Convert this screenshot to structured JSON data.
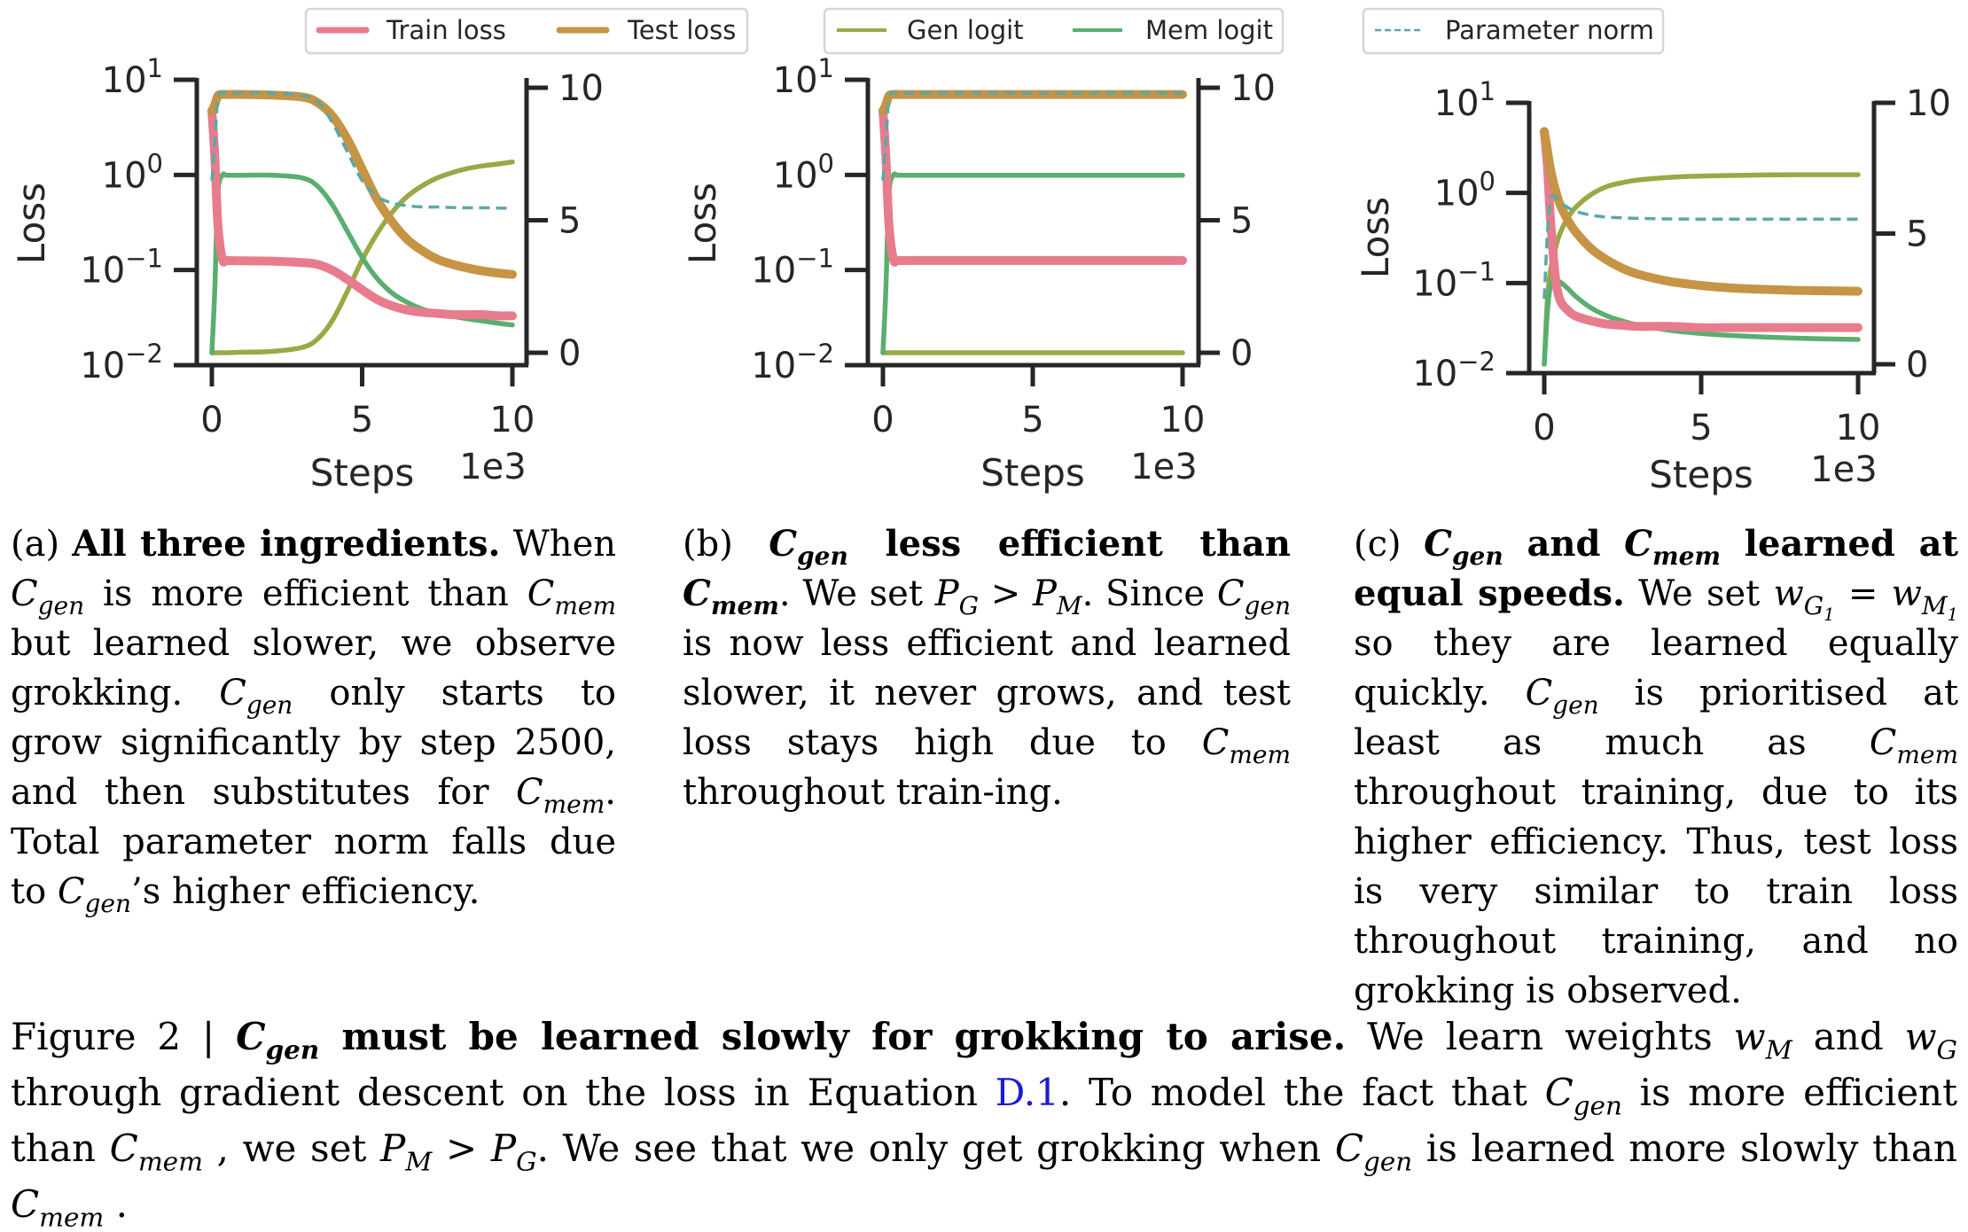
{
  "legend": {
    "train_loss": "Train loss",
    "test_loss": "Test loss",
    "gen_logit": "Gen logit",
    "mem_logit": "Mem logit",
    "param_norm": "Parameter norm"
  },
  "colors": {
    "train_loss": "#e77c8d",
    "test_loss": "#c69445",
    "gen_logit": "#9aa945",
    "mem_logit": "#5aae6f",
    "param_norm": "#5ba8a5",
    "axis": "#262626",
    "link": "#1a1ad6"
  },
  "chart_data": [
    {
      "id": "a",
      "type": "line",
      "title": "",
      "xlabel": "Steps",
      "x_offset_label": "1e3",
      "ylabel": "Loss",
      "yscale": "log",
      "ylim": [
        0.01,
        10
      ],
      "y_ticks": [
        "10^1",
        "10^0",
        "10^-1",
        "10^-2"
      ],
      "y2lim": [
        0,
        10
      ],
      "y2_ticks": [
        "10",
        "5",
        "0"
      ],
      "xlim": [
        0,
        10
      ],
      "x_ticks": [
        "0",
        "5",
        "10"
      ],
      "x": [
        0,
        0.1,
        0.2,
        0.35,
        0.5,
        1,
        2,
        3,
        3.5,
        4,
        4.5,
        5,
        5.5,
        6,
        6.5,
        7,
        7.5,
        8,
        8.5,
        9,
        9.5,
        10
      ],
      "series": [
        {
          "name": "Train loss",
          "axis": "left",
          "values": [
            4.7,
            1.5,
            0.3,
            0.13,
            0.126,
            0.125,
            0.124,
            0.12,
            0.115,
            0.1,
            0.08,
            0.062,
            0.049,
            0.042,
            0.038,
            0.036,
            0.035,
            0.034,
            0.034,
            0.034,
            0.033,
            0.033
          ]
        },
        {
          "name": "Test loss",
          "axis": "left",
          "values": [
            4.7,
            5.5,
            6.8,
            7.0,
            7.0,
            7.0,
            6.9,
            6.6,
            5.8,
            4.2,
            2.4,
            1.15,
            0.55,
            0.32,
            0.21,
            0.16,
            0.13,
            0.115,
            0.105,
            0.098,
            0.093,
            0.09
          ]
        },
        {
          "name": "Gen logit",
          "axis": "right",
          "values": [
            0,
            0,
            0,
            0,
            0,
            0.02,
            0.05,
            0.2,
            0.5,
            1.2,
            2.3,
            3.5,
            4.5,
            5.3,
            5.9,
            6.3,
            6.6,
            6.8,
            6.95,
            7.05,
            7.12,
            7.2
          ]
        },
        {
          "name": "Mem logit",
          "axis": "right",
          "values": [
            0,
            2.5,
            6.0,
            6.7,
            6.7,
            6.7,
            6.7,
            6.6,
            6.3,
            5.6,
            4.6,
            3.6,
            2.8,
            2.25,
            1.9,
            1.65,
            1.5,
            1.38,
            1.28,
            1.2,
            1.12,
            1.05
          ]
        },
        {
          "name": "Parameter norm",
          "axis": "right",
          "values": [
            6.5,
            8.0,
            9.6,
            9.8,
            9.8,
            9.8,
            9.8,
            9.7,
            9.5,
            8.7,
            7.6,
            6.5,
            5.9,
            5.65,
            5.55,
            5.5,
            5.5,
            5.48,
            5.47,
            5.47,
            5.46,
            5.45
          ]
        }
      ]
    },
    {
      "id": "b",
      "type": "line",
      "title": "",
      "xlabel": "Steps",
      "x_offset_label": "1e3",
      "ylabel": "Loss",
      "yscale": "log",
      "ylim": [
        0.01,
        10
      ],
      "y_ticks": [
        "10^1",
        "10^0",
        "10^-1",
        "10^-2"
      ],
      "y2lim": [
        0,
        10
      ],
      "y2_ticks": [
        "10",
        "5",
        "0"
      ],
      "xlim": [
        0,
        10
      ],
      "x_ticks": [
        "0",
        "5",
        "10"
      ],
      "x": [
        0,
        0.1,
        0.2,
        0.35,
        0.5,
        1,
        2,
        4,
        6,
        8,
        10
      ],
      "series": [
        {
          "name": "Train loss",
          "axis": "left",
          "values": [
            4.7,
            1.5,
            0.3,
            0.13,
            0.126,
            0.126,
            0.126,
            0.126,
            0.126,
            0.126,
            0.126
          ]
        },
        {
          "name": "Test loss",
          "axis": "left",
          "values": [
            4.7,
            5.5,
            6.8,
            7.0,
            7.0,
            7.0,
            7.0,
            7.0,
            7.0,
            7.0,
            7.0
          ]
        },
        {
          "name": "Gen logit",
          "axis": "right",
          "values": [
            0,
            0,
            0,
            0,
            0,
            0,
            0,
            0,
            0,
            0,
            0
          ]
        },
        {
          "name": "Mem logit",
          "axis": "right",
          "values": [
            0,
            2.5,
            6.0,
            6.7,
            6.7,
            6.7,
            6.7,
            6.7,
            6.7,
            6.7,
            6.7
          ]
        },
        {
          "name": "Parameter norm",
          "axis": "right",
          "values": [
            6.5,
            8.0,
            9.6,
            9.8,
            9.8,
            9.8,
            9.8,
            9.8,
            9.8,
            9.8,
            9.8
          ]
        }
      ]
    },
    {
      "id": "c",
      "type": "line",
      "title": "",
      "xlabel": "Steps",
      "x_offset_label": "1e3",
      "ylabel": "Loss",
      "yscale": "log",
      "ylim": [
        0.01,
        10
      ],
      "y_ticks": [
        "10^1",
        "10^0",
        "10^-1",
        "10^-2"
      ],
      "y2lim": [
        0,
        10
      ],
      "y2_ticks": [
        "10",
        "5",
        "0"
      ],
      "xlim": [
        0,
        10
      ],
      "x_ticks": [
        "0",
        "5",
        "10"
      ],
      "x": [
        0,
        0.1,
        0.2,
        0.35,
        0.5,
        0.75,
        1,
        1.5,
        2,
        2.5,
        3,
        4,
        5,
        6,
        7,
        8,
        9,
        10
      ],
      "series": [
        {
          "name": "Train loss",
          "axis": "left",
          "values": [
            4.8,
            2.0,
            0.5,
            0.12,
            0.065,
            0.05,
            0.043,
            0.038,
            0.035,
            0.034,
            0.033,
            0.033,
            0.032,
            0.032,
            0.032,
            0.032,
            0.032,
            0.032
          ]
        },
        {
          "name": "Test loss",
          "axis": "left",
          "values": [
            4.8,
            3.0,
            1.8,
            1.1,
            0.75,
            0.5,
            0.37,
            0.24,
            0.18,
            0.145,
            0.125,
            0.104,
            0.094,
            0.088,
            0.085,
            0.083,
            0.082,
            0.081
          ]
        },
        {
          "name": "Gen logit",
          "axis": "right",
          "values": [
            0,
            2.5,
            3.6,
            4.4,
            5.0,
            5.6,
            6.0,
            6.5,
            6.8,
            6.95,
            7.05,
            7.15,
            7.2,
            7.22,
            7.24,
            7.25,
            7.25,
            7.25
          ]
        },
        {
          "name": "Mem logit",
          "axis": "right",
          "values": [
            0,
            2.0,
            3.0,
            3.2,
            3.15,
            2.9,
            2.6,
            2.15,
            1.85,
            1.65,
            1.5,
            1.3,
            1.18,
            1.1,
            1.04,
            1.0,
            0.97,
            0.95
          ]
        },
        {
          "name": "Parameter norm",
          "axis": "right",
          "values": [
            2.5,
            5.0,
            6.3,
            6.4,
            6.2,
            6.0,
            5.85,
            5.7,
            5.63,
            5.6,
            5.58,
            5.56,
            5.55,
            5.55,
            5.55,
            5.55,
            5.55,
            5.55
          ]
        }
      ]
    }
  ],
  "captions": {
    "a": {
      "label": "(a)",
      "title": "All three ingredients.",
      "t1": "When",
      "t2": "is more efficient than",
      "t3": "but learned slower, we observe grokking.",
      "t4": "only starts to grow significantly by step 2500, and then substitutes for",
      "t5": ". Total parameter norm falls due to",
      "t6": "’s higher efficiency."
    },
    "b": {
      "label": "(b)",
      "title_mid": "less efficient than",
      "t1": ". We set",
      "t2": ". Since",
      "t3": "is now less efficient and learned slower, it never grows, and test loss stays high due to",
      "t4": "throughout train-ing."
    },
    "c": {
      "label": "(c)",
      "title_mid1": "and",
      "title_mid2": "learned at equal speeds.",
      "t1": "We set",
      "t2": "so they are learned equally quickly.",
      "t3": "is prioritised at least as much as",
      "t4": "throughout training, due to its higher efficiency.  Thus, test loss is very similar to train loss throughout training, and no grokking is observed."
    },
    "math": {
      "C": "C",
      "gen": "gen",
      "mem": "mem",
      "P": "P",
      "G": "G",
      "M": "M",
      "w": "w",
      "G1": "G",
      "M1": "M",
      "one": "1",
      "gt": " > ",
      "eq": " = "
    }
  },
  "figure_caption": {
    "prefix": "Figure 2 | ",
    "bold": "must be learned slowly for grokking to arise.",
    "t1": " We learn weights ",
    "t2": " and ",
    "t3": " through gradient descent on the loss in Equation ",
    "link": "D.1",
    "t4": ". To model the fact that ",
    "t5": " is more efficient than ",
    "t6": " , we set ",
    "t7": ". We see that we only get grokking when ",
    "t8": " is learned more slowly than ",
    "t9": " ."
  }
}
